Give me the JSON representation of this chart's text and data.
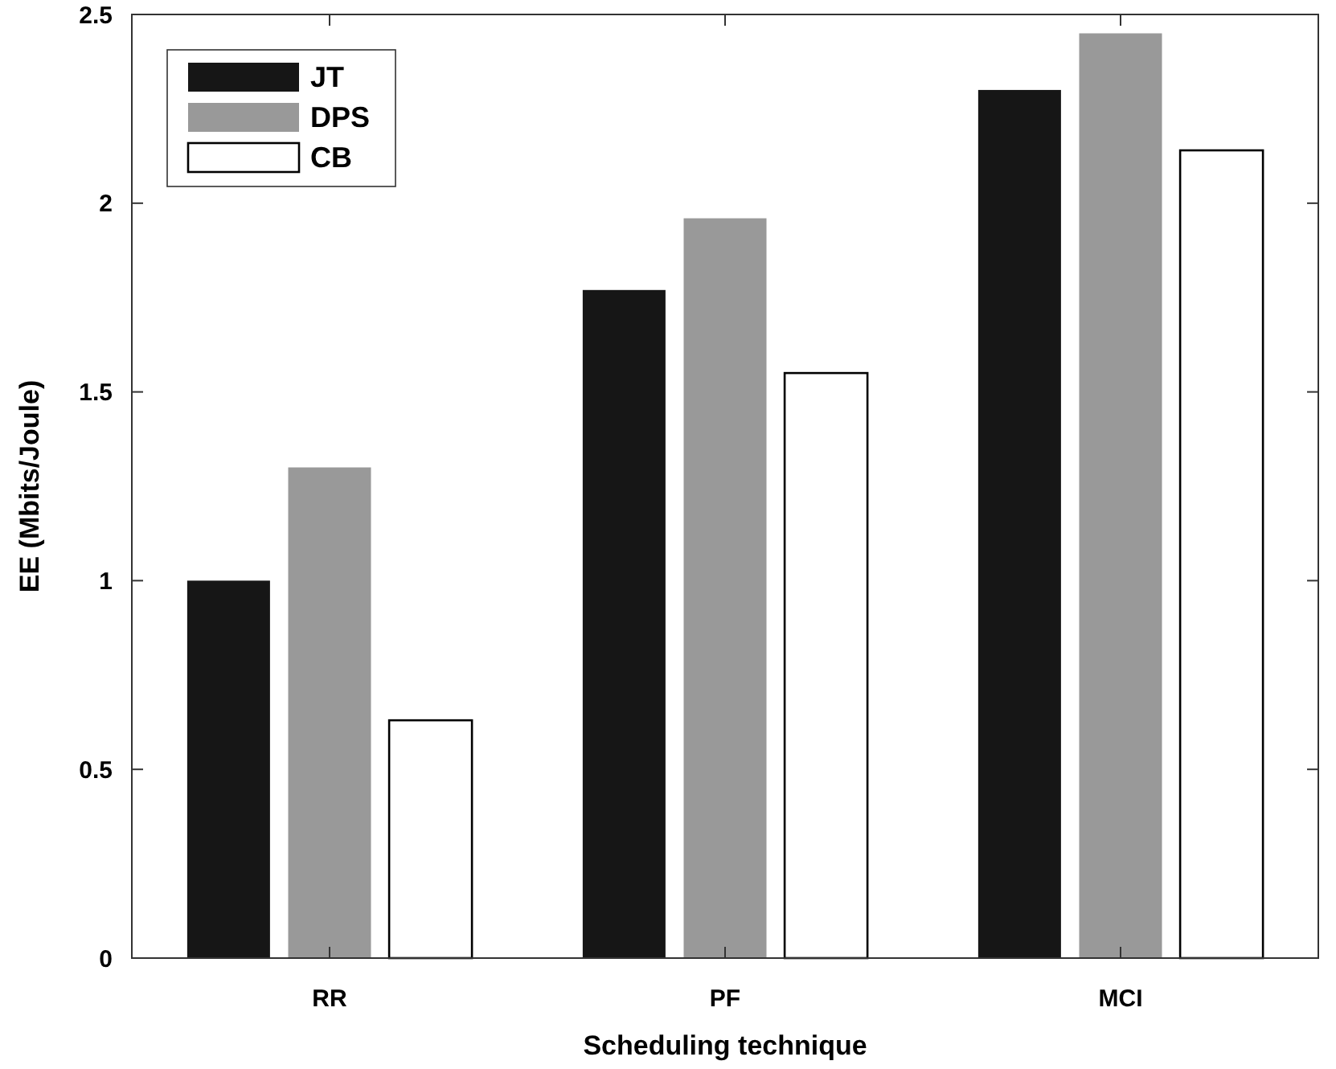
{
  "chart_data": {
    "type": "bar",
    "xlabel": "Scheduling technique",
    "ylabel": "EE (Mbits/Joule)",
    "categories": [
      "RR",
      "PF",
      "MCI"
    ],
    "series": [
      {
        "name": "JT",
        "color": "#161616",
        "values": [
          1.0,
          1.77,
          2.3
        ]
      },
      {
        "name": "DPS",
        "color": "#999999",
        "values": [
          1.3,
          1.96,
          2.45
        ]
      },
      {
        "name": "CB",
        "color": "#ffffff",
        "values": [
          0.63,
          1.55,
          2.14
        ]
      }
    ],
    "ylim": [
      0,
      2.5
    ],
    "yticks": [
      0,
      0.5,
      1,
      1.5,
      2,
      2.5
    ],
    "grid": false,
    "legend": "top left"
  }
}
